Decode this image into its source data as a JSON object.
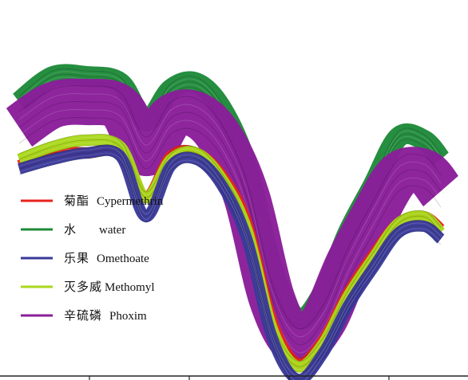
{
  "chart_data": {
    "type": "line",
    "title": "",
    "xlabel": "",
    "ylabel": "",
    "x": [
      0.0,
      0.08,
      0.16,
      0.24,
      0.3,
      0.36,
      0.42,
      0.48,
      0.54,
      0.6,
      0.66,
      0.72,
      0.78,
      0.84,
      0.9,
      0.96,
      1.0
    ],
    "xlim": [
      0,
      1
    ],
    "ylim": [
      0,
      1
    ],
    "grid": false,
    "legend": "left",
    "series": [
      {
        "name_cn": "水",
        "name": "water",
        "color": "#1f8a3a",
        "values": [
          0.78,
          0.86,
          0.86,
          0.84,
          0.72,
          0.82,
          0.84,
          0.76,
          0.58,
          0.26,
          0.1,
          0.18,
          0.37,
          0.52,
          0.67,
          0.66,
          0.6
        ]
      },
      {
        "name_cn": "辛硫磷",
        "name": "Phoxim",
        "color": "#8a1e9a",
        "values": [
          0.7,
          0.77,
          0.78,
          0.76,
          0.62,
          0.73,
          0.74,
          0.66,
          0.48,
          0.16,
          0.02,
          0.09,
          0.27,
          0.42,
          0.55,
          0.56,
          0.5
        ]
      },
      {
        "name_cn": "菊酯",
        "name": "Cypermethrin",
        "color": "#e8231c",
        "values": [
          0.58,
          0.62,
          0.62,
          0.62,
          0.48,
          0.61,
          0.62,
          0.55,
          0.4,
          0.09,
          -0.04,
          0.03,
          0.18,
          0.3,
          0.4,
          0.42,
          0.38
        ]
      },
      {
        "name_cn": "灭多威",
        "name": "Methomyl",
        "color": "#a8d81a",
        "values": [
          0.6,
          0.64,
          0.66,
          0.64,
          0.48,
          0.6,
          0.62,
          0.54,
          0.38,
          0.07,
          -0.05,
          0.02,
          0.17,
          0.29,
          0.4,
          0.42,
          0.37
        ]
      },
      {
        "name_cn": "乐果",
        "name": "Omethoate",
        "color": "#3a3a9a",
        "values": [
          0.57,
          0.6,
          0.62,
          0.61,
          0.42,
          0.58,
          0.6,
          0.52,
          0.35,
          0.04,
          -0.09,
          -0.01,
          0.14,
          0.26,
          0.37,
          0.39,
          0.35
        ]
      }
    ],
    "legend_order": [
      "Cypermethrin",
      "water",
      "Omethoate",
      "Methomyl",
      "Phoxim"
    ]
  }
}
